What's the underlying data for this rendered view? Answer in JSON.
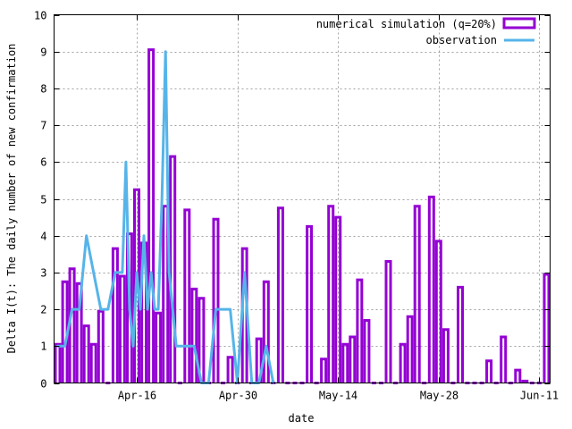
{
  "chart_data": {
    "type": "bar",
    "title": "",
    "xlabel": "date",
    "ylabel": "Delta I(t): The daily number of new confirmation",
    "ylim": [
      0,
      10
    ],
    "yticks": [
      0,
      1,
      2,
      3,
      4,
      5,
      6,
      7,
      8,
      9,
      10
    ],
    "xlim": [
      -0.5,
      68.5
    ],
    "xticks": [
      {
        "label": "Apr-16",
        "x": 11
      },
      {
        "label": "Apr-30",
        "x": 25
      },
      {
        "label": "May-14",
        "x": 39
      },
      {
        "label": "May-28",
        "x": 53
      },
      {
        "label": "Jun-11",
        "x": 67
      }
    ],
    "grid": true,
    "legend_position": "top-right",
    "colors": {
      "bars": "#9400d3",
      "line": "#56b4e9"
    },
    "series": [
      {
        "name": "numerical simulation (q=20%)",
        "kind": "bar",
        "x": [
          0,
          1,
          2,
          3,
          4,
          5,
          6,
          7,
          8,
          9,
          10,
          11,
          12,
          13,
          14,
          15,
          16,
          17,
          18,
          19,
          20,
          21,
          22,
          23,
          24,
          25,
          26,
          27,
          28,
          29,
          30,
          31,
          32,
          33,
          34,
          35,
          36,
          37,
          38,
          39,
          40,
          41,
          42,
          43,
          44,
          45,
          46,
          47,
          48,
          49,
          50,
          51,
          52,
          53,
          54,
          55,
          56,
          57,
          58,
          59,
          60,
          61,
          62,
          63,
          64,
          65,
          66,
          67,
          68
        ],
        "values": [
          1.05,
          2.75,
          3.1,
          2.7,
          1.55,
          1.05,
          1.95,
          0,
          3.65,
          2.9,
          4.05,
          5.25,
          3.8,
          9.05,
          1.9,
          4.8,
          6.15,
          0,
          4.7,
          2.55,
          2.3,
          0,
          4.45,
          0,
          0.7,
          0,
          3.65,
          0,
          1.2,
          2.75,
          0,
          4.75,
          0,
          0,
          0,
          4.25,
          0,
          0.65,
          4.8,
          4.5,
          1.05,
          1.25,
          2.8,
          1.7,
          0,
          0,
          3.3,
          0,
          1.05,
          1.8,
          4.8,
          0,
          5.05,
          3.85,
          1.45,
          0,
          2.6,
          0,
          0,
          0,
          0.6,
          0,
          1.25,
          0,
          0.35,
          0.05,
          0,
          0,
          2.95
        ]
      },
      {
        "name": "observation",
        "kind": "line",
        "x": [
          0,
          1,
          2,
          3,
          4,
          5,
          6,
          7,
          8,
          9,
          9.5,
          10,
          10.5,
          11,
          11.5,
          12,
          12.5,
          13,
          13.5,
          14,
          14.5,
          15,
          15.5,
          16,
          16.5,
          17,
          18,
          19,
          20,
          21,
          22,
          23,
          24,
          25,
          26,
          27,
          28,
          29,
          30
        ],
        "values": [
          1,
          1,
          2,
          2,
          4,
          3,
          2,
          2,
          3,
          3,
          6,
          2,
          1,
          3,
          2,
          4,
          2,
          3,
          2,
          2,
          5,
          9,
          3,
          2,
          1,
          1,
          1,
          1,
          0,
          0,
          2,
          2,
          2,
          0,
          3,
          0,
          0,
          1,
          0
        ]
      }
    ]
  }
}
